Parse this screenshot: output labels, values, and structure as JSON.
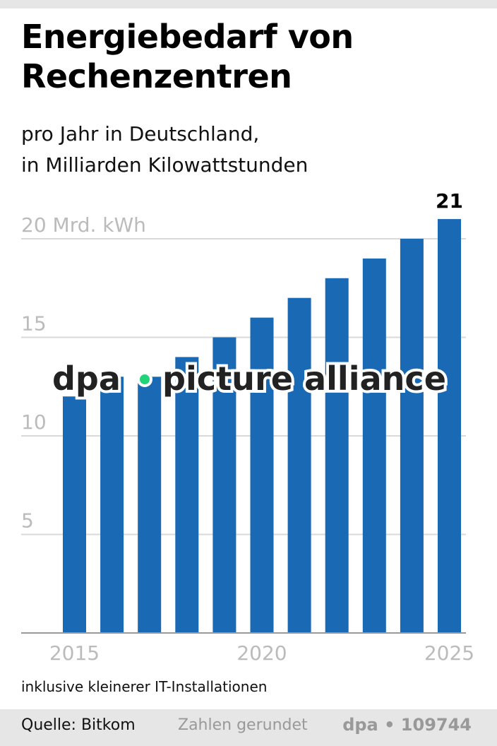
{
  "title": "Energiebedarf von Rechenzentren",
  "subtitle_lines": [
    "pro Jahr in Deutschland,",
    "in Milliarden Kilowattstunden"
  ],
  "note": "inklusive kleinerer IT-Installationen",
  "footer": {
    "source": "Quelle: Bitkom",
    "rounding": "Zahlen gerundet",
    "credit": "dpa • 109744"
  },
  "watermark": "dpa • picture alliance",
  "chart_data": {
    "type": "bar",
    "categories": [
      "2015",
      "2016",
      "2017",
      "2018",
      "2019",
      "2020",
      "2021",
      "2022",
      "2023",
      "2024",
      "2025"
    ],
    "values": [
      12,
      13,
      13,
      14,
      15,
      16,
      17,
      18,
      19,
      20,
      21
    ],
    "ylim": [
      0,
      20
    ],
    "yticks": [
      {
        "value": 5,
        "label": "5"
      },
      {
        "value": 10,
        "label": "10"
      },
      {
        "value": 15,
        "label": "15"
      },
      {
        "value": 20,
        "label": "20 Mrd. kWh"
      }
    ],
    "xtick_labels": [
      "2015",
      "2020",
      "2025"
    ],
    "data_labels": [
      {
        "category": "2025",
        "label": "21"
      }
    ],
    "grid": true,
    "colors": {
      "bar": "#1a69b4",
      "grid": "#d9d9d9",
      "axis": "#999999",
      "tick_text": "#bbbbbb",
      "watermark_dot": "#22d37a"
    }
  }
}
